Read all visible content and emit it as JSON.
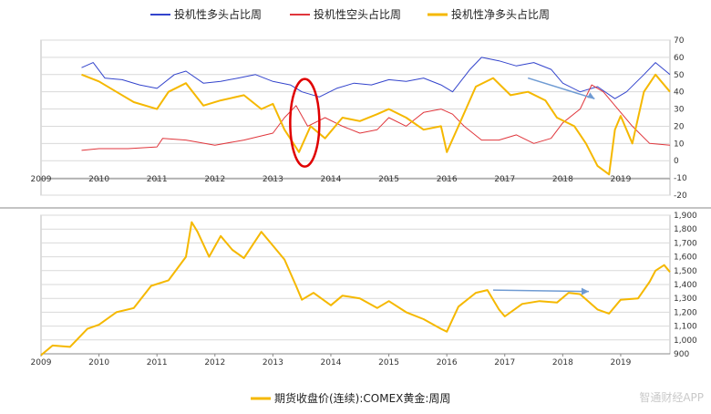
{
  "colors": {
    "long": "#3344cc",
    "short": "#e0363c",
    "net": "#f5b800",
    "annot": "#6f9bd3",
    "circle": "#e00000",
    "grid": "#d9d9d9"
  },
  "watermark": "智通财经APP",
  "chart_data": [
    {
      "type": "line",
      "title": "",
      "legend_position": "top",
      "x_ticks": [
        "2009",
        "2010",
        "2011",
        "2012",
        "2013",
        "2014",
        "2015",
        "2016",
        "2017",
        "2018",
        "2019"
      ],
      "y_ticks": [
        "70",
        "60",
        "50",
        "40",
        "30",
        "20",
        "10",
        "0",
        "-10",
        "-20"
      ],
      "ylim": [
        -20,
        70
      ],
      "series": [
        {
          "name": "投机性多头占比周",
          "key": "long",
          "x": [
            2009.7,
            2009.9,
            2010.1,
            2010.4,
            2010.7,
            2011.0,
            2011.3,
            2011.5,
            2011.8,
            2012.1,
            2012.4,
            2012.7,
            2013.0,
            2013.3,
            2013.5,
            2013.8,
            2014.1,
            2014.4,
            2014.7,
            2015.0,
            2015.3,
            2015.6,
            2015.9,
            2016.1,
            2016.4,
            2016.6,
            2016.9,
            2017.2,
            2017.5,
            2017.8,
            2018.0,
            2018.3,
            2018.6,
            2018.9,
            2019.1,
            2019.4,
            2019.6,
            2019.85
          ],
          "y": [
            54,
            57,
            48,
            47,
            44,
            42,
            50,
            52,
            45,
            46,
            48,
            50,
            46,
            44,
            40,
            37,
            42,
            45,
            44,
            47,
            46,
            48,
            44,
            40,
            53,
            60,
            58,
            55,
            57,
            53,
            45,
            40,
            43,
            36,
            40,
            50,
            57,
            50
          ]
        },
        {
          "name": "投机性空头占比周",
          "key": "short",
          "x": [
            2009.7,
            2010.0,
            2010.5,
            2011.0,
            2011.1,
            2011.5,
            2012.0,
            2012.5,
            2013.0,
            2013.2,
            2013.4,
            2013.6,
            2013.9,
            2014.2,
            2014.5,
            2014.8,
            2015.0,
            2015.3,
            2015.6,
            2015.9,
            2016.1,
            2016.3,
            2016.6,
            2016.9,
            2017.2,
            2017.5,
            2017.8,
            2018.0,
            2018.3,
            2018.5,
            2018.7,
            2018.9,
            2019.2,
            2019.5,
            2019.85
          ],
          "y": [
            6,
            7,
            7,
            8,
            13,
            12,
            9,
            12,
            16,
            25,
            32,
            20,
            25,
            20,
            16,
            18,
            25,
            20,
            28,
            30,
            27,
            20,
            12,
            12,
            15,
            10,
            13,
            22,
            30,
            44,
            40,
            32,
            20,
            10,
            9
          ]
        },
        {
          "name": "投机性净多头占比周",
          "key": "net",
          "x": [
            2009.7,
            2010.0,
            2010.3,
            2010.6,
            2011.0,
            2011.2,
            2011.5,
            2011.8,
            2012.1,
            2012.5,
            2012.8,
            2013.0,
            2013.2,
            2013.45,
            2013.65,
            2013.9,
            2014.2,
            2014.5,
            2014.8,
            2015.0,
            2015.3,
            2015.6,
            2015.9,
            2016.0,
            2016.2,
            2016.5,
            2016.8,
            2017.1,
            2017.4,
            2017.7,
            2017.9,
            2018.2,
            2018.4,
            2018.6,
            2018.8,
            2018.9,
            2019.0,
            2019.2,
            2019.4,
            2019.6,
            2019.85
          ],
          "y": [
            50,
            46,
            40,
            34,
            30,
            40,
            45,
            32,
            35,
            38,
            30,
            33,
            18,
            5,
            20,
            13,
            25,
            23,
            27,
            30,
            25,
            18,
            20,
            5,
            20,
            43,
            48,
            38,
            40,
            35,
            25,
            20,
            10,
            -3,
            -8,
            18,
            26,
            10,
            40,
            50,
            40
          ]
        }
      ]
    },
    {
      "type": "line",
      "title": "",
      "legend_position": "bottom",
      "x_ticks": [
        "2009",
        "2010",
        "2011",
        "2012",
        "2013",
        "2014",
        "2015",
        "2016",
        "2017",
        "2018",
        "2019"
      ],
      "y_ticks": [
        "1,900",
        "1,800",
        "1,700",
        "1,600",
        "1,500",
        "1,400",
        "1,300",
        "1,200",
        "1,100",
        "1,000",
        "900"
      ],
      "ylim": [
        900,
        1900
      ],
      "series": [
        {
          "name": "期货收盘价(连续):COMEX黄金:周周",
          "key": "gold",
          "x": [
            2009.0,
            2009.2,
            2009.5,
            2009.8,
            2010.0,
            2010.3,
            2010.6,
            2010.9,
            2011.2,
            2011.5,
            2011.6,
            2011.7,
            2011.9,
            2012.1,
            2012.3,
            2012.5,
            2012.8,
            2013.0,
            2013.2,
            2013.4,
            2013.5,
            2013.7,
            2014.0,
            2014.2,
            2014.5,
            2014.8,
            2015.0,
            2015.3,
            2015.6,
            2015.9,
            2016.0,
            2016.2,
            2016.5,
            2016.7,
            2016.9,
            2017.0,
            2017.3,
            2017.6,
            2017.9,
            2018.1,
            2018.3,
            2018.6,
            2018.8,
            2019.0,
            2019.3,
            2019.5,
            2019.6,
            2019.75,
            2019.85
          ],
          "y": [
            890,
            960,
            950,
            1080,
            1110,
            1200,
            1230,
            1390,
            1430,
            1600,
            1850,
            1780,
            1600,
            1750,
            1650,
            1590,
            1780,
            1680,
            1580,
            1390,
            1290,
            1340,
            1250,
            1320,
            1300,
            1230,
            1280,
            1200,
            1150,
            1080,
            1060,
            1240,
            1340,
            1360,
            1220,
            1170,
            1260,
            1280,
            1270,
            1340,
            1330,
            1220,
            1190,
            1290,
            1300,
            1420,
            1500,
            1540,
            1490
          ]
        }
      ]
    }
  ],
  "annotations": {
    "circle": {
      "x": 2013.55,
      "y": 22
    },
    "arrow_top": {
      "x1": 2017.4,
      "y1": 48,
      "x2": 2018.55,
      "y2": 36
    },
    "arrow_bottom": {
      "x1": 2016.8,
      "y1": 1360,
      "x2": 2018.45,
      "y2": 1350
    }
  }
}
